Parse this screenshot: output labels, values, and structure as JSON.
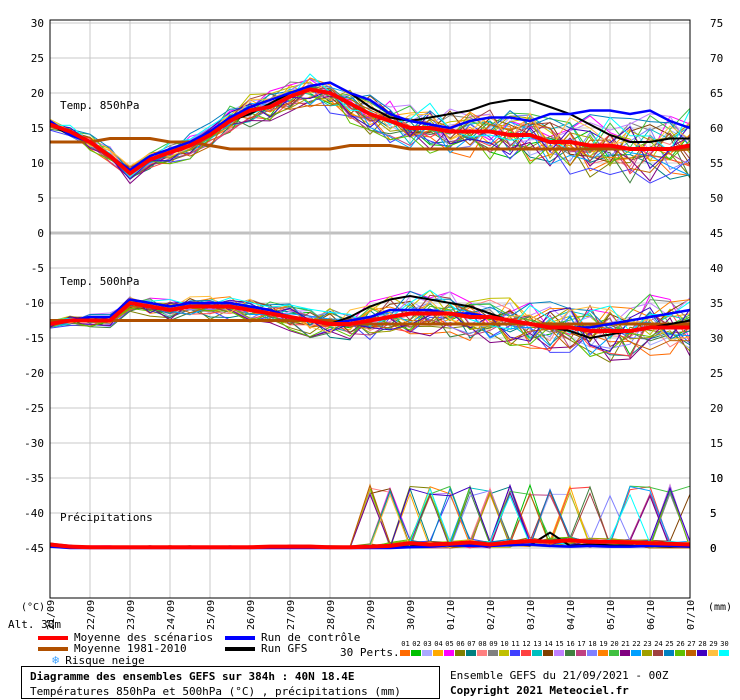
{
  "chart_data": {
    "type": "line",
    "x_dates": [
      "21/09",
      "22/09",
      "23/09",
      "24/09",
      "25/09",
      "26/09",
      "27/09",
      "28/09",
      "29/09",
      "30/09",
      "01/10",
      "02/10",
      "03/10",
      "04/10",
      "05/10",
      "06/10",
      "07/10"
    ],
    "x_start": "21/09 00Z",
    "x_end": "07/10 00Z",
    "y_left_ticks": [
      30,
      25,
      20,
      15,
      10,
      5,
      0,
      -5,
      -10,
      -15,
      -20,
      -25,
      -30,
      -35,
      -40,
      -45
    ],
    "y_left_label": "(°C)",
    "y_right_label": "(mm)",
    "y_right_temp_ticks": [
      75,
      70,
      65,
      60,
      55,
      50,
      45,
      40,
      35,
      30,
      25,
      20,
      15,
      10,
      5,
      0
    ],
    "y_right_precip_ticks": [
      10,
      5,
      0
    ],
    "y_right_temp_offset": 45,
    "panels": {
      "t850": {
        "title": "Temp. 850hPa",
        "mean": [
          15.5,
          14.5,
          13,
          11,
          8.5,
          10.5,
          11.5,
          12.5,
          14,
          16,
          17.5,
          18,
          19.5,
          20.5,
          20,
          18.5,
          17,
          16,
          15,
          15,
          14.5,
          14.5,
          14.5,
          14,
          14,
          13,
          13,
          12.5,
          12.5,
          12,
          12,
          12,
          12.5
        ],
        "control": [
          16,
          14,
          13,
          11,
          9,
          11,
          12,
          13,
          14.5,
          16.5,
          18,
          19,
          20,
          21,
          21.5,
          20,
          19,
          17,
          16,
          15.5,
          15,
          16,
          16.5,
          16.5,
          16,
          17,
          17,
          17.5,
          17.5,
          17,
          17.5,
          16,
          15
        ],
        "gfs": [
          15.5,
          14,
          13,
          11,
          8.5,
          10.5,
          11.5,
          12.5,
          14,
          16,
          17,
          18.5,
          20,
          21,
          21.5,
          20,
          18,
          16.5,
          16,
          16.5,
          17,
          17.5,
          18.5,
          19,
          19,
          18,
          17,
          15.5,
          14,
          13,
          13,
          13.5,
          13.5
        ],
        "normal": [
          13,
          13,
          13,
          13.5,
          13.5,
          13.5,
          13,
          13,
          12.5,
          12,
          12,
          12,
          12,
          12,
          12,
          12.5,
          12.5,
          12.5,
          12,
          12,
          12,
          12,
          12,
          12,
          12,
          12,
          12,
          12,
          12,
          12,
          12,
          12,
          12
        ]
      },
      "t500": {
        "title": "Temp. 500hPa",
        "mean": [
          -13,
          -12.5,
          -12.5,
          -12.5,
          -10,
          -10.5,
          -11,
          -10.5,
          -10.5,
          -10.5,
          -11,
          -11.5,
          -12,
          -12.5,
          -13,
          -13,
          -12.5,
          -12,
          -11.5,
          -11.5,
          -11.5,
          -12,
          -12,
          -12.5,
          -13,
          -13.5,
          -13.5,
          -14,
          -14,
          -14,
          -13.5,
          -13.5,
          -13.5
        ],
        "control": [
          -13,
          -12.5,
          -12,
          -12,
          -9.5,
          -10,
          -10.5,
          -10,
          -10,
          -10,
          -10.5,
          -11,
          -12,
          -12.5,
          -13,
          -12.5,
          -12,
          -11,
          -11,
          -11,
          -11.5,
          -11.5,
          -12,
          -12.5,
          -13,
          -13.5,
          -13.5,
          -13.5,
          -13,
          -12.5,
          -12,
          -11.5,
          -11
        ],
        "gfs": [
          -13,
          -12.5,
          -12,
          -12,
          -9.5,
          -10,
          -10.5,
          -10,
          -10,
          -10,
          -10.5,
          -11,
          -12,
          -12.5,
          -13,
          -12,
          -10.5,
          -9.5,
          -9,
          -9.5,
          -10,
          -10.5,
          -11.5,
          -12.5,
          -13,
          -13.5,
          -14,
          -15,
          -14.5,
          -14,
          -13.5,
          -13,
          -12.5
        ],
        "normal": [
          -12.5,
          -12.5,
          -12.5,
          -12.5,
          -12.5,
          -12.5,
          -12.5,
          -12.5,
          -12.5,
          -12.5,
          -12.5,
          -12.5,
          -12.5,
          -12.5,
          -12.5,
          -13,
          -13,
          -13,
          -13,
          -13,
          -13,
          -13,
          -13,
          -13,
          -13,
          -13,
          -13,
          -13,
          -13,
          -13,
          -13,
          -13,
          -13
        ]
      },
      "precip": {
        "title": "Précipitations",
        "mean": [
          0.5,
          0.2,
          0.1,
          0.1,
          0.1,
          0.1,
          0.1,
          0.1,
          0.1,
          0.1,
          0.1,
          0.2,
          0.2,
          0.2,
          0.1,
          0.1,
          0.2,
          0.3,
          0.7,
          0.5,
          0.6,
          0.8,
          0.5,
          0.8,
          1,
          0.9,
          1.1,
          0.9,
          0.9,
          0.8,
          0.7,
          0.6,
          0.5
        ],
        "control": [
          0.2,
          0,
          0,
          0,
          0,
          0,
          0,
          0,
          0,
          0,
          0,
          0,
          0,
          0,
          0,
          0,
          0,
          0,
          0.1,
          0.2,
          0.4,
          0.3,
          0.3,
          0.4,
          0.5,
          0.3,
          0.2,
          0.3,
          0.2,
          0.2,
          0.3,
          0.3,
          0.2
        ],
        "gfs": [
          0.3,
          0,
          0,
          0,
          0,
          0,
          0,
          0,
          0,
          0,
          0,
          0,
          0,
          0,
          0,
          0,
          0,
          0.1,
          0.2,
          0.6,
          0.3,
          0.4,
          0.3,
          0.5,
          0.4,
          2.2,
          0.3,
          0.5,
          0.4,
          0.3,
          0.3,
          0.2,
          0.3
        ]
      }
    }
  },
  "altitude_label": "Alt. 30m",
  "legend": {
    "mean": "Moyenne des scénarios",
    "normal": "Moyenne 1981-2010",
    "snow": "Risque neige",
    "control": "Run de contrôle",
    "gfs": "Run GFS",
    "perts": "30 Perts.",
    "pert_numbers": [
      "01",
      "02",
      "03",
      "04",
      "05",
      "06",
      "07",
      "08",
      "09",
      "10",
      "11",
      "12",
      "13",
      "14",
      "15",
      "16",
      "17",
      "18",
      "19",
      "20",
      "21",
      "22",
      "23",
      "24",
      "25",
      "26",
      "27",
      "28",
      "29",
      "30"
    ],
    "pert_colors": [
      "#ff6a00",
      "#00c000",
      "#aaaaff",
      "#ffaa00",
      "#ff00ff",
      "#808000",
      "#008080",
      "#ff8080",
      "#808080",
      "#c0c000",
      "#4040ff",
      "#ff4040",
      "#00c0c0",
      "#804000",
      "#c080ff",
      "#408040",
      "#c04080",
      "#8080ff",
      "#ff8000",
      "#40c040",
      "#800080",
      "#00a0ff",
      "#a0a000",
      "#a04040",
      "#0080c0",
      "#60c000",
      "#c06000",
      "#4000c0",
      "#ffc040",
      "#00ffff"
    ]
  },
  "colors": {
    "mean": "#ff0000",
    "control": "#0000ff",
    "gfs": "#000000",
    "normal": "#b05000",
    "grid": "#c8c8c8",
    "plot_bg": "#ffffff",
    "panel_sep": "#c0c0c0"
  },
  "footer": {
    "title": "Diagramme des ensembles GEFS sur 384h : 40N 18.4E",
    "subtitle": "Températures 850hPa et 500hPa (°C) , précipitations (mm)",
    "run": "Ensemble GEFS du 21/09/2021 - 00Z",
    "copyright": "Copyright 2021 Meteociel.fr"
  }
}
